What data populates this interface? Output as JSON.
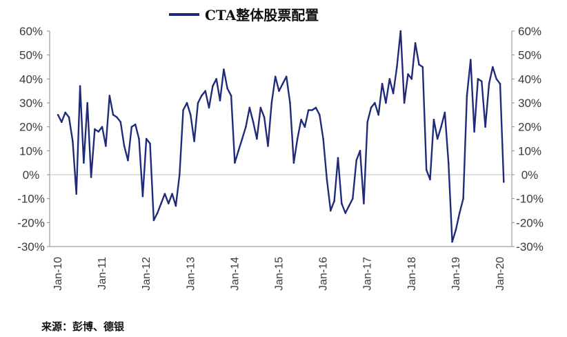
{
  "chart_data": {
    "type": "line",
    "series": [
      {
        "name": "CTA整体股票配置",
        "color": "#1f2a78",
        "points": [
          [
            "2010-01",
            25
          ],
          [
            "2010-02",
            22
          ],
          [
            "2010-03",
            26
          ],
          [
            "2010-04",
            24
          ],
          [
            "2010-05",
            14
          ],
          [
            "2010-06",
            -8
          ],
          [
            "2010-07",
            37
          ],
          [
            "2010-08",
            5
          ],
          [
            "2010-09",
            30
          ],
          [
            "2010-10",
            -1
          ],
          [
            "2010-11",
            19
          ],
          [
            "2010-12",
            18
          ],
          [
            "2011-01",
            20
          ],
          [
            "2011-02",
            12
          ],
          [
            "2011-03",
            33
          ],
          [
            "2011-04",
            25
          ],
          [
            "2011-05",
            24
          ],
          [
            "2011-06",
            22
          ],
          [
            "2011-07",
            12
          ],
          [
            "2011-08",
            6
          ],
          [
            "2011-09",
            20
          ],
          [
            "2011-10",
            21
          ],
          [
            "2011-11",
            15
          ],
          [
            "2011-12",
            -9
          ],
          [
            "2012-01",
            15
          ],
          [
            "2012-02",
            13
          ],
          [
            "2012-03",
            -19
          ],
          [
            "2012-04",
            -16
          ],
          [
            "2012-05",
            -12
          ],
          [
            "2012-06",
            -8
          ],
          [
            "2012-07",
            -12
          ],
          [
            "2012-08",
            -8
          ],
          [
            "2012-09",
            -13
          ],
          [
            "2012-10",
            0
          ],
          [
            "2012-11",
            27
          ],
          [
            "2012-12",
            30
          ],
          [
            "2013-01",
            25
          ],
          [
            "2013-02",
            14
          ],
          [
            "2013-03",
            30
          ],
          [
            "2013-04",
            33
          ],
          [
            "2013-05",
            35
          ],
          [
            "2013-06",
            28
          ],
          [
            "2013-07",
            37
          ],
          [
            "2013-08",
            40
          ],
          [
            "2013-09",
            31
          ],
          [
            "2013-10",
            44
          ],
          [
            "2013-11",
            36
          ],
          [
            "2013-12",
            33
          ],
          [
            "2014-01",
            5
          ],
          [
            "2014-02",
            10
          ],
          [
            "2014-03",
            15
          ],
          [
            "2014-04",
            20
          ],
          [
            "2014-05",
            28
          ],
          [
            "2014-06",
            22
          ],
          [
            "2014-07",
            15
          ],
          [
            "2014-08",
            28
          ],
          [
            "2014-09",
            24
          ],
          [
            "2014-10",
            12
          ],
          [
            "2014-11",
            30
          ],
          [
            "2014-12",
            41
          ],
          [
            "2015-01",
            35
          ],
          [
            "2015-02",
            38
          ],
          [
            "2015-03",
            41
          ],
          [
            "2015-04",
            30
          ],
          [
            "2015-05",
            5
          ],
          [
            "2015-06",
            15
          ],
          [
            "2015-07",
            23
          ],
          [
            "2015-08",
            20
          ],
          [
            "2015-09",
            27
          ],
          [
            "2015-10",
            27
          ],
          [
            "2015-11",
            28
          ],
          [
            "2015-12",
            25
          ],
          [
            "2016-01",
            15
          ],
          [
            "2016-02",
            -2
          ],
          [
            "2016-03",
            -15
          ],
          [
            "2016-04",
            -11
          ],
          [
            "2016-05",
            7
          ],
          [
            "2016-06",
            -12
          ],
          [
            "2016-07",
            -16
          ],
          [
            "2016-08",
            -13
          ],
          [
            "2016-09",
            -10
          ],
          [
            "2016-10",
            6
          ],
          [
            "2016-11",
            10
          ],
          [
            "2016-12",
            -12
          ],
          [
            "2017-01",
            22
          ],
          [
            "2017-02",
            28
          ],
          [
            "2017-03",
            30
          ],
          [
            "2017-04",
            25
          ],
          [
            "2017-05",
            38
          ],
          [
            "2017-06",
            30
          ],
          [
            "2017-07",
            40
          ],
          [
            "2017-08",
            34
          ],
          [
            "2017-09",
            45
          ],
          [
            "2017-10",
            60
          ],
          [
            "2017-11",
            30
          ],
          [
            "2017-12",
            42
          ],
          [
            "2018-01",
            40
          ],
          [
            "2018-02",
            55
          ],
          [
            "2018-03",
            46
          ],
          [
            "2018-04",
            45
          ],
          [
            "2018-05",
            2
          ],
          [
            "2018-06",
            -2
          ],
          [
            "2018-07",
            23
          ],
          [
            "2018-08",
            15
          ],
          [
            "2018-09",
            20
          ],
          [
            "2018-10",
            26
          ],
          [
            "2018-11",
            5
          ],
          [
            "2018-12",
            -28
          ],
          [
            "2019-01",
            -23
          ],
          [
            "2019-02",
            -16
          ],
          [
            "2019-03",
            -10
          ],
          [
            "2019-04",
            33
          ],
          [
            "2019-05",
            48
          ],
          [
            "2019-06",
            18
          ],
          [
            "2019-07",
            40
          ],
          [
            "2019-08",
            39
          ],
          [
            "2019-09",
            20
          ],
          [
            "2019-10",
            38
          ],
          [
            "2019-11",
            45
          ],
          [
            "2019-12",
            40
          ],
          [
            "2020-01",
            38
          ],
          [
            "2020-02",
            -3
          ]
        ]
      }
    ],
    "x_ticks": [
      "Jan-10",
      "Jan-11",
      "Jan-12",
      "Jan-13",
      "Jan-14",
      "Jan-15",
      "Jan-16",
      "Jan-17",
      "Jan-18",
      "Jan-19",
      "Jan-20"
    ],
    "y_ticks": [
      "60%",
      "50%",
      "40%",
      "30%",
      "20%",
      "10%",
      "0%",
      "-10%",
      "-20%",
      "-30%"
    ],
    "ylim": [
      -30,
      60
    ],
    "x_range": [
      "2010-01",
      "2020-01"
    ],
    "dual_y_axis": true,
    "grid": false,
    "zero_line": true,
    "legend_position": "top"
  },
  "source_note": "来源：彭博、德银"
}
